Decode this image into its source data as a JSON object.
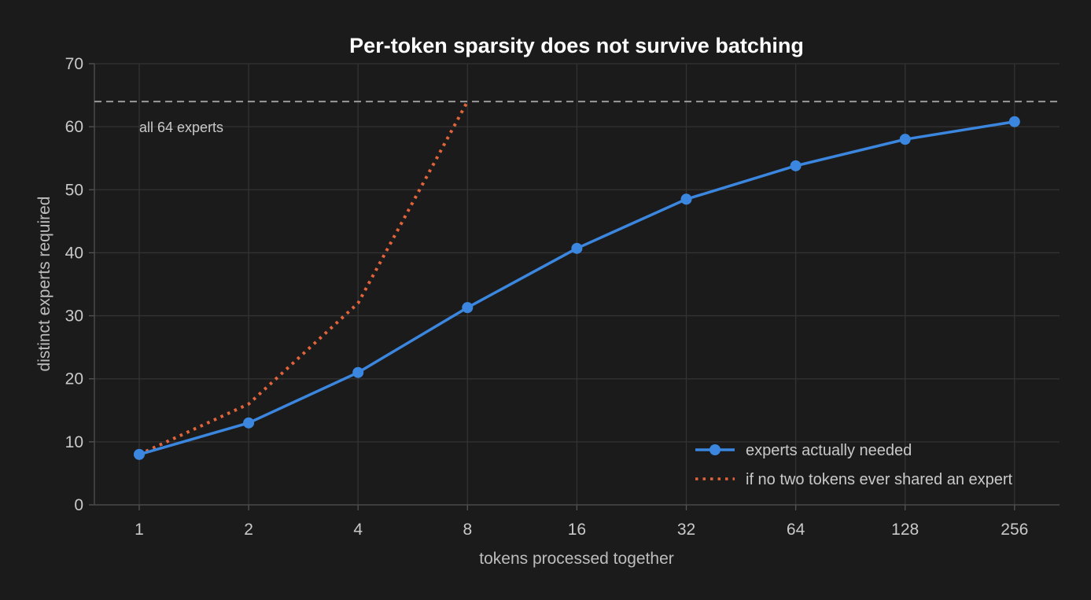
{
  "chart_data": {
    "type": "line",
    "title": "Per-token sparsity does not survive batching",
    "xlabel": "tokens processed together",
    "ylabel": "distinct experts required",
    "x": [
      1,
      2,
      4,
      8,
      16,
      32,
      64,
      128,
      256
    ],
    "x_tick_labels": [
      "1",
      "2",
      "4",
      "8",
      "16",
      "32",
      "64",
      "128",
      "256"
    ],
    "x_scale": "log2",
    "ylim": [
      0,
      70
    ],
    "y_ticks": [
      0,
      10,
      20,
      30,
      40,
      50,
      60,
      70
    ],
    "y_tick_labels": [
      "0",
      "10",
      "20",
      "30",
      "40",
      "50",
      "60",
      "70"
    ],
    "grid": true,
    "series": [
      {
        "name": "experts actually needed",
        "style": "solid-with-markers",
        "color": "#3b87e0",
        "x": [
          1,
          2,
          4,
          8,
          16,
          32,
          64,
          128,
          256
        ],
        "values": [
          8,
          13,
          21,
          31.3,
          40.7,
          48.5,
          53.8,
          58,
          60.8
        ]
      },
      {
        "name": "if no two tokens ever shared an expert",
        "style": "dotted",
        "color": "#e2643a",
        "x": [
          1,
          2,
          4,
          8
        ],
        "values": [
          8,
          16,
          32,
          64
        ]
      }
    ],
    "reference_line": {
      "y": 64,
      "style": "dashed",
      "color": "#9a9a9a",
      "label": "all 64 experts"
    },
    "legend": {
      "placement": "bottom-right"
    },
    "colors": {
      "background": "#1b1b1b",
      "grid": "#333333",
      "text": "#c9c9c9",
      "title": "#ffffff"
    }
  }
}
